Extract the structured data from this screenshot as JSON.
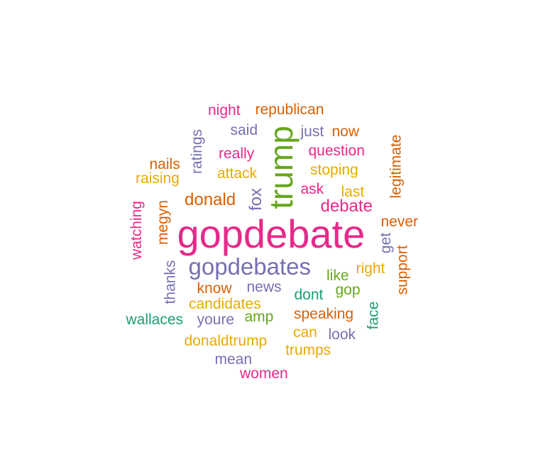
{
  "colors": {
    "pink": "#e7298a",
    "green": "#66a61e",
    "purple": "#7570b3",
    "orange": "#d95f02",
    "gold": "#e6ab02",
    "teal": "#1b9e77"
  },
  "words": [
    {
      "text": "gopdebate",
      "color": "pink"
    },
    {
      "text": "trump",
      "color": "green"
    },
    {
      "text": "gopdebates",
      "color": "purple"
    },
    {
      "text": "donald",
      "color": "orange"
    },
    {
      "text": "fox",
      "color": "purple"
    },
    {
      "text": "debate",
      "color": "pink"
    },
    {
      "text": "night",
      "color": "pink"
    },
    {
      "text": "republican",
      "color": "orange"
    },
    {
      "text": "said",
      "color": "purple"
    },
    {
      "text": "just",
      "color": "purple"
    },
    {
      "text": "now",
      "color": "orange"
    },
    {
      "text": "ratings",
      "color": "purple"
    },
    {
      "text": "really",
      "color": "pink"
    },
    {
      "text": "question",
      "color": "pink"
    },
    {
      "text": "legitimate",
      "color": "orange"
    },
    {
      "text": "nails",
      "color": "orange"
    },
    {
      "text": "attack",
      "color": "gold"
    },
    {
      "text": "stoping",
      "color": "gold"
    },
    {
      "text": "raising",
      "color": "gold"
    },
    {
      "text": "ask",
      "color": "pink"
    },
    {
      "text": "last",
      "color": "gold"
    },
    {
      "text": "watching",
      "color": "pink"
    },
    {
      "text": "megyn",
      "color": "orange"
    },
    {
      "text": "never",
      "color": "orange"
    },
    {
      "text": "get",
      "color": "purple"
    },
    {
      "text": "support",
      "color": "orange"
    },
    {
      "text": "thanks",
      "color": "purple"
    },
    {
      "text": "like",
      "color": "green"
    },
    {
      "text": "right",
      "color": "gold"
    },
    {
      "text": "know",
      "color": "orange"
    },
    {
      "text": "news",
      "color": "purple"
    },
    {
      "text": "gop",
      "color": "green"
    },
    {
      "text": "dont",
      "color": "teal"
    },
    {
      "text": "candidates",
      "color": "gold"
    },
    {
      "text": "face",
      "color": "teal"
    },
    {
      "text": "wallaces",
      "color": "teal"
    },
    {
      "text": "youre",
      "color": "purple"
    },
    {
      "text": "amp",
      "color": "green"
    },
    {
      "text": "speaking",
      "color": "orange"
    },
    {
      "text": "can",
      "color": "gold"
    },
    {
      "text": "look",
      "color": "purple"
    },
    {
      "text": "donaldtrump",
      "color": "gold"
    },
    {
      "text": "trumps",
      "color": "gold"
    },
    {
      "text": "mean",
      "color": "purple"
    },
    {
      "text": "women",
      "color": "pink"
    }
  ]
}
